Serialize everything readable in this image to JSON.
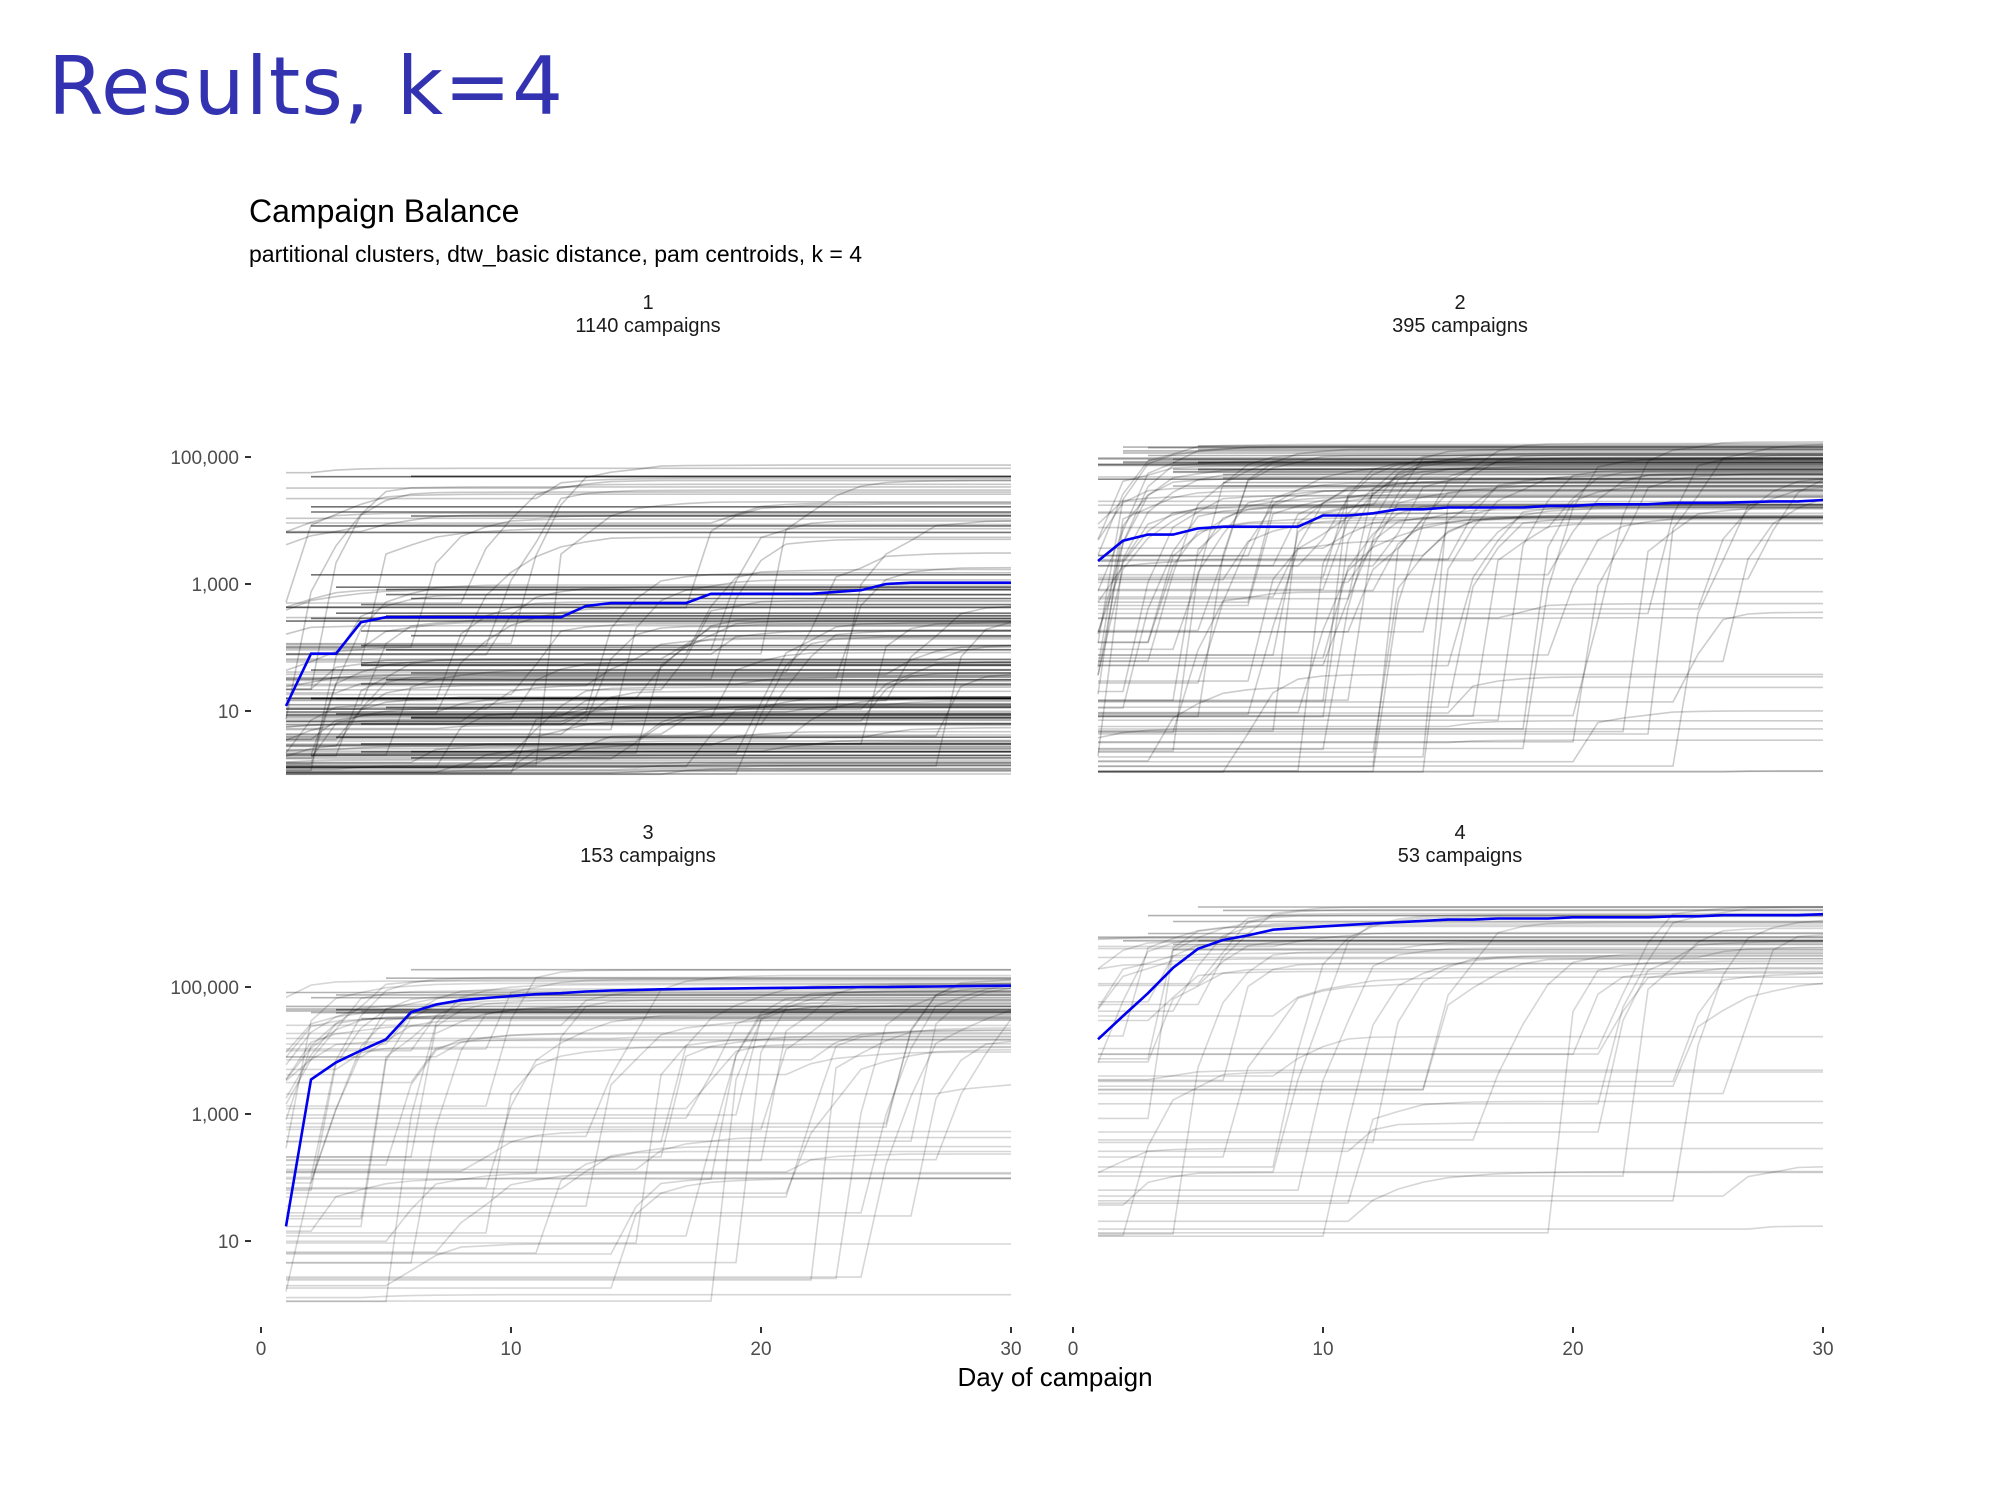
{
  "slide": {
    "title": "Results, k=4"
  },
  "chart_data": {
    "type": "line",
    "title": "Campaign Balance",
    "subtitle": "partitional clusters, dtw_basic distance, pam centroids, k = 4",
    "xlabel": "Day of campaign",
    "ylabel": "",
    "x_scale": "linear",
    "y_scale": "log10",
    "xlim": [
      0,
      30
    ],
    "ylim": [
      1,
      200000
    ],
    "x_ticks": [
      0,
      10,
      20,
      30
    ],
    "x_tick_labels": [
      "0",
      "10",
      "20",
      "30"
    ],
    "y_ticks": [
      10,
      1000,
      100000
    ],
    "y_tick_labels": [
      "10",
      "1,000",
      "100,000"
    ],
    "grid": false,
    "legend": "none",
    "colors": {
      "centroid": "#0000ee",
      "members": "#000000"
    },
    "panels": [
      {
        "cluster": "1",
        "label": "1140 campaigns",
        "n_campaigns": 1140,
        "centroid": {
          "x": [
            1,
            2,
            3,
            4,
            5,
            6,
            7,
            8,
            9,
            10,
            11,
            12,
            13,
            14,
            15,
            16,
            17,
            18,
            19,
            20,
            21,
            22,
            23,
            24,
            25,
            26,
            27,
            28,
            29,
            30
          ],
          "y": [
            12,
            80,
            80,
            250,
            300,
            300,
            300,
            300,
            300,
            300,
            300,
            300,
            450,
            500,
            500,
            500,
            500,
            700,
            700,
            700,
            700,
            700,
            750,
            800,
            1000,
            1050,
            1050,
            1050,
            1050,
            1050
          ]
        },
        "member_level_range": [
          1,
          80000
        ]
      },
      {
        "cluster": "2",
        "label": "395 campaigns",
        "n_campaigns": 395,
        "centroid": {
          "x": [
            1,
            2,
            3,
            4,
            5,
            6,
            7,
            8,
            9,
            10,
            11,
            12,
            13,
            14,
            15,
            16,
            17,
            18,
            19,
            20,
            21,
            22,
            23,
            24,
            25,
            26,
            27,
            28,
            29,
            30
          ],
          "y": [
            2300,
            4800,
            6000,
            6000,
            7500,
            8000,
            8000,
            8000,
            8000,
            12000,
            12000,
            13000,
            15000,
            15000,
            16000,
            16000,
            16000,
            16000,
            17000,
            17000,
            18000,
            18000,
            18000,
            19000,
            19000,
            19000,
            19500,
            20000,
            20000,
            21000
          ]
        },
        "member_level_range": [
          1,
          180000
        ]
      },
      {
        "cluster": "3",
        "label": "153 campaigns",
        "n_campaigns": 153,
        "centroid": {
          "x": [
            1,
            2,
            3,
            4,
            5,
            6,
            7,
            8,
            9,
            10,
            11,
            12,
            13,
            14,
            15,
            16,
            17,
            18,
            19,
            20,
            21,
            22,
            23,
            24,
            25,
            26,
            27,
            28,
            29,
            30
          ],
          "y": [
            17,
            3500,
            6500,
            10000,
            15000,
            40000,
            53000,
            62000,
            67000,
            72000,
            77000,
            80000,
            85000,
            88000,
            90000,
            92000,
            93000,
            94000,
            95000,
            96000,
            97000,
            98000,
            99000,
            100000,
            100000,
            101000,
            102000,
            103000,
            104000,
            105000
          ]
        },
        "member_level_range": [
          1,
          190000
        ]
      },
      {
        "cluster": "4",
        "label": "53 campaigns",
        "n_campaigns": 53,
        "centroid": {
          "x": [
            1,
            2,
            3,
            4,
            5,
            6,
            7,
            8,
            9,
            10,
            11,
            12,
            13,
            14,
            15,
            16,
            17,
            18,
            19,
            20,
            21,
            22,
            23,
            24,
            25,
            26,
            27,
            28,
            29,
            30
          ],
          "y": [
            15000,
            35000,
            80000,
            200000,
            400000,
            550000,
            650000,
            800000,
            850000,
            900000,
            950000,
            1000000,
            1050000,
            1100000,
            1150000,
            1150000,
            1200000,
            1200000,
            1200000,
            1250000,
            1250000,
            1250000,
            1250000,
            1300000,
            1300000,
            1350000,
            1350000,
            1350000,
            1350000,
            1400000
          ]
        },
        "member_level_range": [
          10,
          2000000
        ]
      }
    ]
  }
}
